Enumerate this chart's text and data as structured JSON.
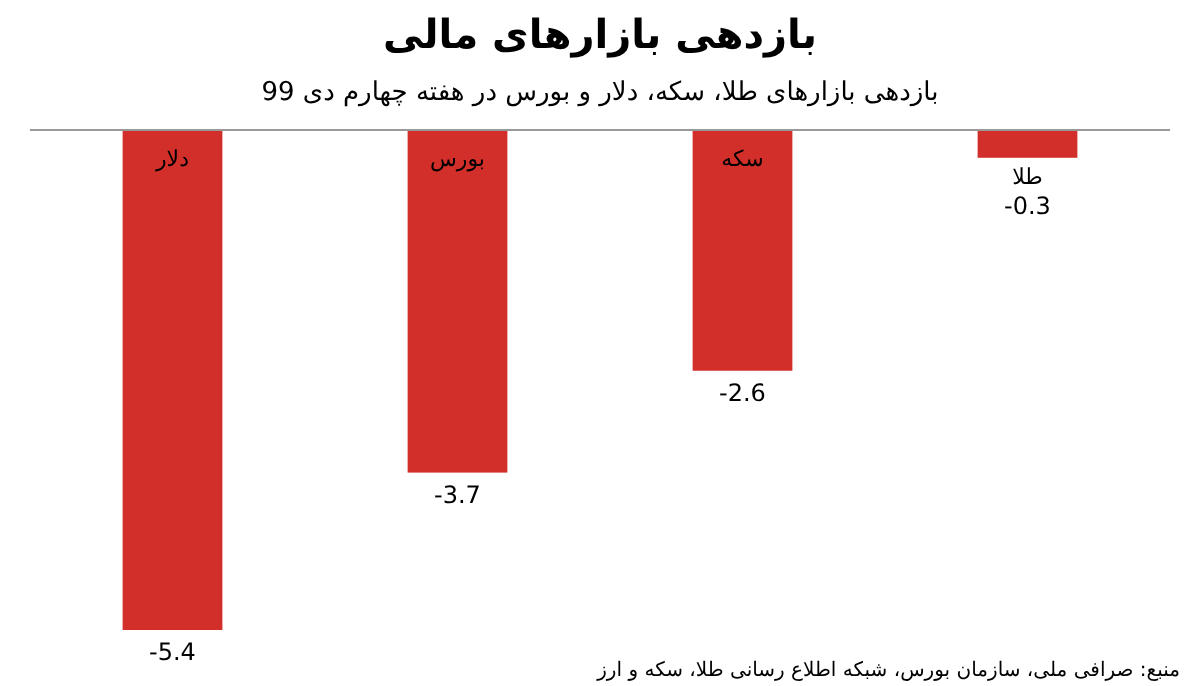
{
  "chart_data": {
    "type": "bar",
    "title": "بازدهی بازارهای مالی",
    "subtitle": "بازدهی بازارهای طلا، سکه، دلار و بورس در هفته چهارم دی 99",
    "categories": [
      "دلار",
      "بورس",
      "سکه",
      "طلا"
    ],
    "values": [
      -5.4,
      -3.7,
      -2.6,
      -0.3
    ],
    "color": "#d32f2a",
    "data_labels": true,
    "annotations": [
      "منبع: صرافی ملی، سازمان بورس، شبکه اطلاع رسانی طلا، سکه و ارز"
    ]
  }
}
